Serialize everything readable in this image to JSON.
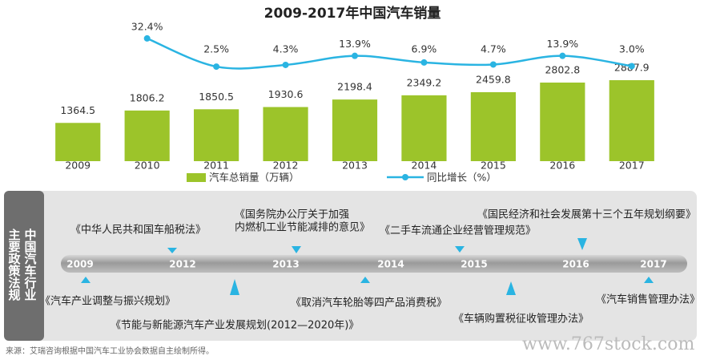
{
  "chart_data": {
    "type": "bar",
    "title": "2009-2017年中国汽车销量",
    "categories": [
      "2009",
      "2010",
      "2011",
      "2012",
      "2013",
      "2014",
      "2015",
      "2016",
      "2017"
    ],
    "series": [
      {
        "name": "汽车总销量（万辆）",
        "type": "bar",
        "color": "#9cc42a",
        "values": [
          1364.5,
          1806.2,
          1850.5,
          1930.6,
          2198.4,
          2349.2,
          2459.8,
          2802.8,
          2887.9
        ]
      },
      {
        "name": "同比增长（%）",
        "type": "line",
        "axis": "y2",
        "color": "#2ab4e2",
        "values": [
          null,
          32.4,
          2.5,
          4.3,
          13.9,
          6.9,
          4.7,
          13.9,
          3.0
        ],
        "value_labels": [
          null,
          "32.4%",
          "2.5%",
          "4.3%",
          "13.9%",
          "6.9%",
          "4.7%",
          "13.9%",
          "3.0%"
        ]
      }
    ],
    "ylim": [
      0,
      3300
    ],
    "y2lim": [
      0,
      40
    ],
    "legend": "bottom"
  },
  "timeline": {
    "side_label": [
      "主要政策法规",
      "中国汽车行业"
    ],
    "years": [
      "2009",
      "2012",
      "2013",
      "2014",
      "2015",
      "2016",
      "2017"
    ],
    "policies": [
      [
        "《汽车产业调整与振兴规划》"
      ],
      [
        "《中华人民共和国车船税法》"
      ],
      [
        "《节能与新能源汽车产业发展规划(2012—2020年)》"
      ],
      [
        "《国务院办公厅关于加强",
        "内燃机工业节能减排的意见》"
      ],
      [
        "《取消汽车轮胎等四产品消费税》"
      ],
      [
        "《二手车流通企业经营管理规范》"
      ],
      [
        "《车辆购置税征收管理办法》"
      ],
      [
        "《国民经济和社会发展第十三个五年规划纲要》"
      ],
      [
        "《汽车销售管理办法》"
      ]
    ]
  },
  "source": "来源：艾瑞咨询根据中国汽车工业协会数据自主绘制所得。",
  "watermark": "www.767stock.com"
}
